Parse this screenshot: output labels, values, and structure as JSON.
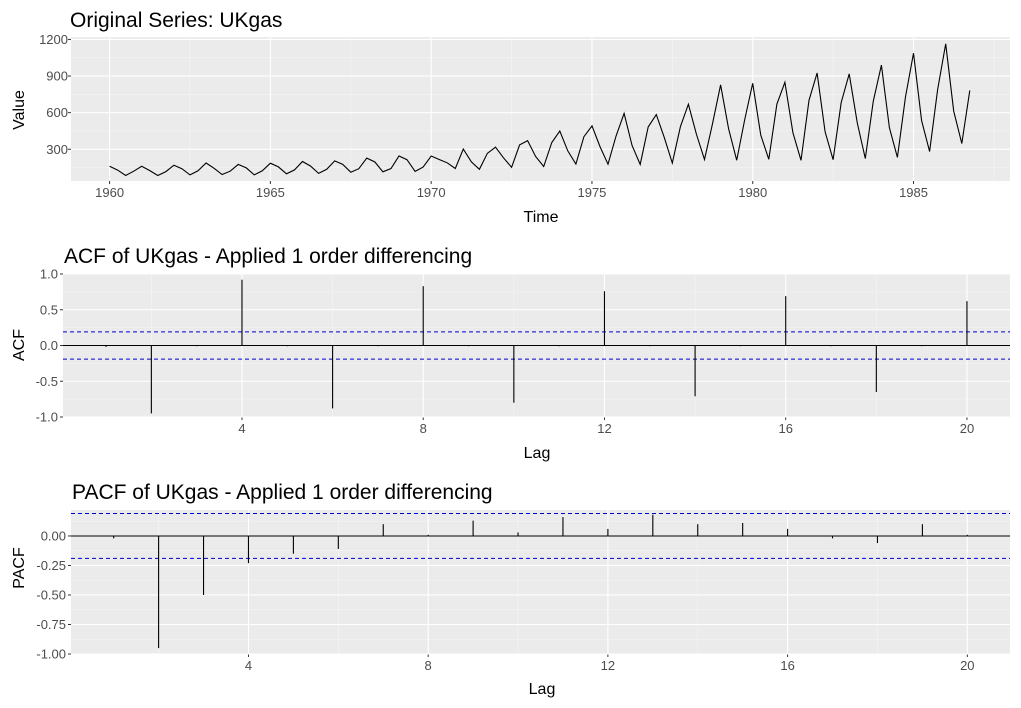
{
  "colors": {
    "panel_bg": "#ebebeb",
    "grid_major": "#ffffff",
    "grid_minor": "#f5f5f5",
    "line": "#000000",
    "ci": "#0000cc",
    "tick_text": "#4d4d4d"
  },
  "chart_data": [
    {
      "type": "line",
      "title": "Original Series: UKgas",
      "xlabel": "Time",
      "ylabel": "Value",
      "xlim": [
        1958.8,
        1988.0
      ],
      "ylim": [
        40,
        1220
      ],
      "x_ticks": [
        1960,
        1965,
        1970,
        1975,
        1980,
        1985
      ],
      "x_tick_labels": [
        "1960",
        "1965",
        "1970",
        "1975",
        "1980",
        "1985"
      ],
      "y_ticks": [
        300,
        600,
        900,
        1200
      ],
      "y_tick_labels": [
        "300",
        "600",
        "900",
        "1200"
      ],
      "grid": true,
      "series": [
        {
          "start": 1960.0,
          "frequency": 4,
          "values": [
            160.1,
            129.7,
            84.8,
            120.1,
            160.1,
            124.9,
            84.8,
            116.9,
            169.7,
            140.9,
            89.7,
            123.3,
            187.3,
            144.1,
            92.9,
            120.1,
            176.1,
            147.3,
            89.7,
            123.3,
            185.7,
            155.3,
            99.3,
            131.3,
            200.1,
            161.7,
            102.5,
            136.1,
            204.9,
            176.1,
            112.1,
            140.9,
            227.3,
            195.3,
            115.3,
            142.5,
            244.9,
            214.5,
            118.5,
            153.7,
            244.9,
            216.1,
            188.9,
            142.5,
            301.0,
            196.9,
            136.1,
            267.3,
            317.0,
            230.5,
            152.1,
            336.2,
            371.4,
            240.1,
            158.5,
            355.4,
            449.9,
            286.6,
            179.3,
            403.4,
            491.5,
            321.8,
            177.7,
            409.8,
            593.9,
            329.8,
            176.1,
            483.5,
            584.3,
            395.4,
            187.3,
            485.1,
            669.2,
            421.0,
            216.1,
            509.1,
            827.7,
            467.5,
            209.7,
            542.7,
            840.5,
            414.6,
            217.7,
            670.8,
            848.5,
            437.0,
            209.7,
            701.2,
            925.3,
            443.4,
            214.5,
            683.6,
            917.3,
            515.5,
            224.1,
            694.8,
            989.4,
            477.1,
            233.7,
            730.0,
            1087.0,
            534.7,
            281.8,
            787.6,
            1163.9,
            613.1,
            347.4,
            782.8
          ]
        }
      ]
    },
    {
      "type": "bar",
      "title": "ACF of UKgas - Applied 1 order differencing",
      "xlabel": "Lag",
      "ylabel": "ACF",
      "xlim": [
        0.05,
        20.95
      ],
      "ylim": [
        -1.0,
        1.0
      ],
      "x_ticks": [
        4,
        8,
        12,
        16,
        20
      ],
      "x_tick_labels": [
        "4",
        "8",
        "12",
        "16",
        "20"
      ],
      "y_ticks": [
        -1.0,
        -0.5,
        0.0,
        0.5,
        1.0
      ],
      "y_tick_labels": [
        "-1.0",
        "-0.5",
        "0.0",
        "0.5",
        "1.0"
      ],
      "ci": 0.19,
      "grid": true,
      "lags": [
        1,
        2,
        3,
        4,
        5,
        6,
        7,
        8,
        9,
        10,
        11,
        12,
        13,
        14,
        15,
        16,
        17,
        18,
        19,
        20
      ],
      "values": [
        -0.02,
        -0.95,
        -0.01,
        0.92,
        -0.01,
        -0.88,
        -0.01,
        0.83,
        -0.01,
        -0.8,
        -0.01,
        0.76,
        -0.01,
        -0.71,
        -0.01,
        0.69,
        -0.01,
        -0.65,
        -0.01,
        0.62
      ]
    },
    {
      "type": "bar",
      "title": "PACF of UKgas - Applied 1 order differencing",
      "xlabel": "Lag",
      "ylabel": "PACF",
      "xlim": [
        0.05,
        20.95
      ],
      "ylim": [
        -1.0,
        0.22
      ],
      "x_ticks": [
        4,
        8,
        12,
        16,
        20
      ],
      "x_tick_labels": [
        "4",
        "8",
        "12",
        "16",
        "20"
      ],
      "y_ticks": [
        -1.0,
        -0.75,
        -0.5,
        -0.25,
        0.0
      ],
      "y_tick_labels": [
        "-1.00",
        "-0.75",
        "-0.50",
        "-0.25",
        "0.00"
      ],
      "ci": 0.19,
      "grid": true,
      "lags": [
        1,
        2,
        3,
        4,
        5,
        6,
        7,
        8,
        9,
        10,
        11,
        12,
        13,
        14,
        15,
        16,
        17,
        18,
        19,
        20
      ],
      "values": [
        -0.02,
        -0.95,
        -0.5,
        -0.23,
        -0.15,
        -0.11,
        0.1,
        0.01,
        0.13,
        0.03,
        0.16,
        0.06,
        0.18,
        0.1,
        0.11,
        0.06,
        -0.02,
        -0.06,
        0.1,
        0.01
      ]
    }
  ]
}
